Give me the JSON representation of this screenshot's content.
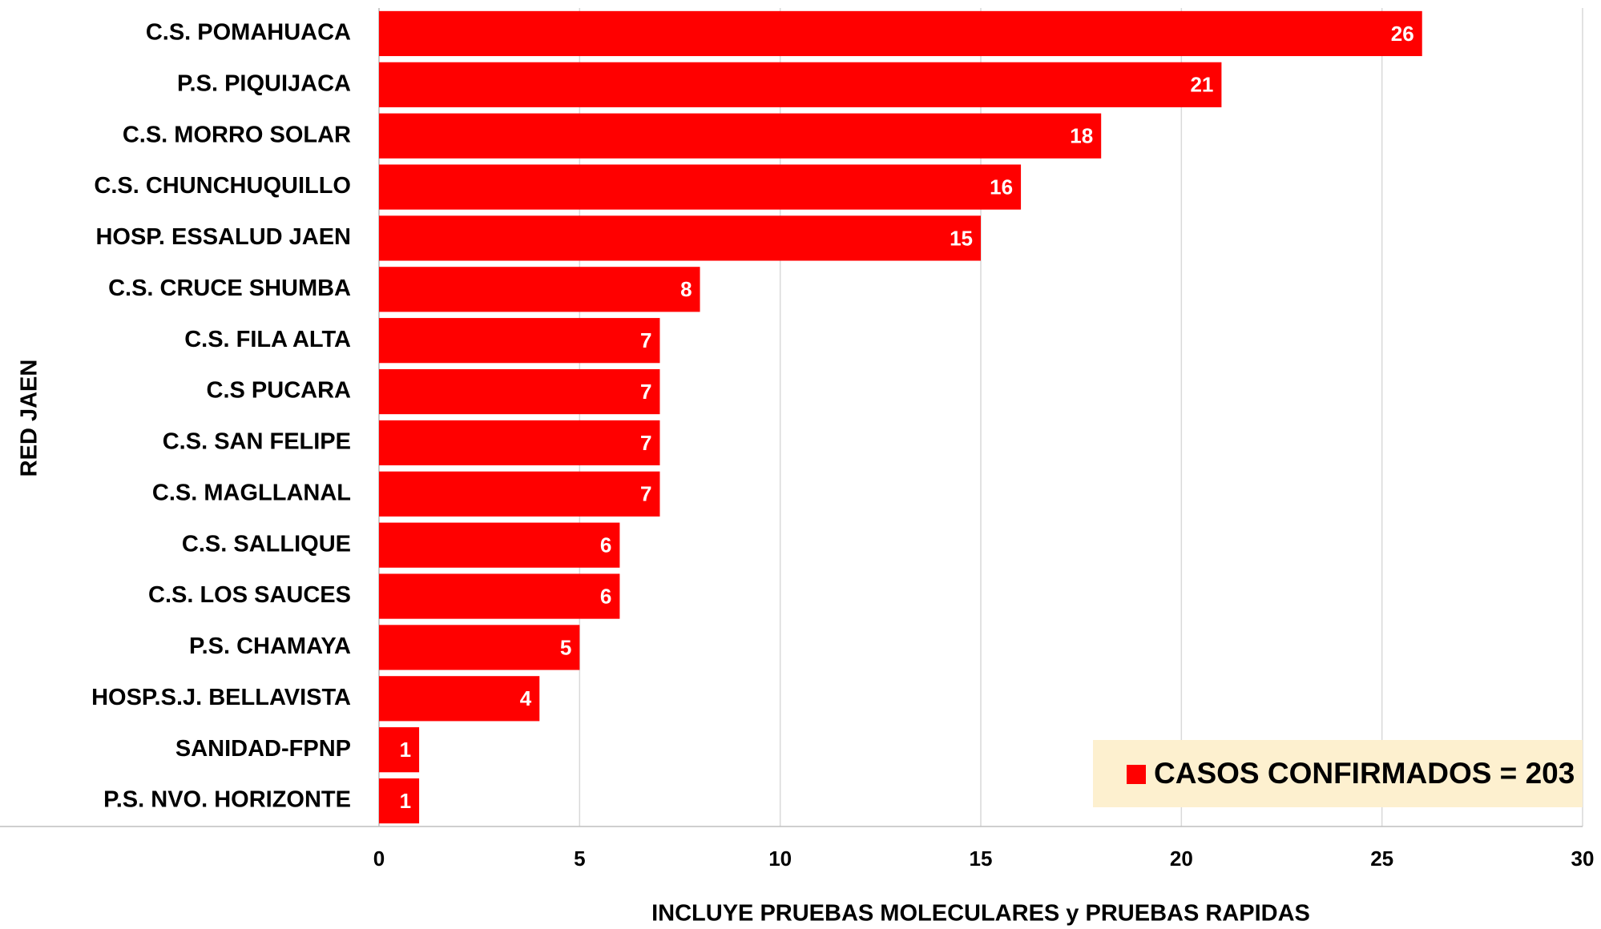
{
  "chart_data": {
    "type": "bar",
    "orientation": "horizontal",
    "x_label": "INCLUYE PRUEBAS MOLECULARES y PRUEBAS RAPIDAS",
    "y_label": "RED JAEN",
    "categories": [
      "C.S. POMAHUACA",
      "P.S. PIQUIJACA",
      "C.S. MORRO SOLAR",
      "C.S. CHUNCHUQUILLO",
      "HOSP. ESSALUD JAEN",
      "C.S. CRUCE SHUMBA",
      "C.S. FILA ALTA",
      "C.S PUCARA",
      "C.S. SAN FELIPE",
      "C.S. MAGLLANAL",
      "C.S. SALLIQUE",
      "C.S. LOS SAUCES",
      "P.S. CHAMAYA",
      "HOSP.S.J. BELLAVISTA",
      "SANIDAD-FPNP",
      "P.S. NVO. HORIZONTE"
    ],
    "series": [
      {
        "name": "CASOS CONFIRMADOS = 203",
        "color": "#ff0000",
        "values": [
          26,
          21,
          18,
          16,
          15,
          8,
          7,
          7,
          7,
          7,
          6,
          6,
          5,
          4,
          1,
          1
        ]
      }
    ],
    "xlim": [
      0,
      30
    ],
    "xticks": [
      0,
      5,
      10,
      15,
      20,
      25,
      30
    ],
    "grid": true,
    "legend": "lower right"
  }
}
